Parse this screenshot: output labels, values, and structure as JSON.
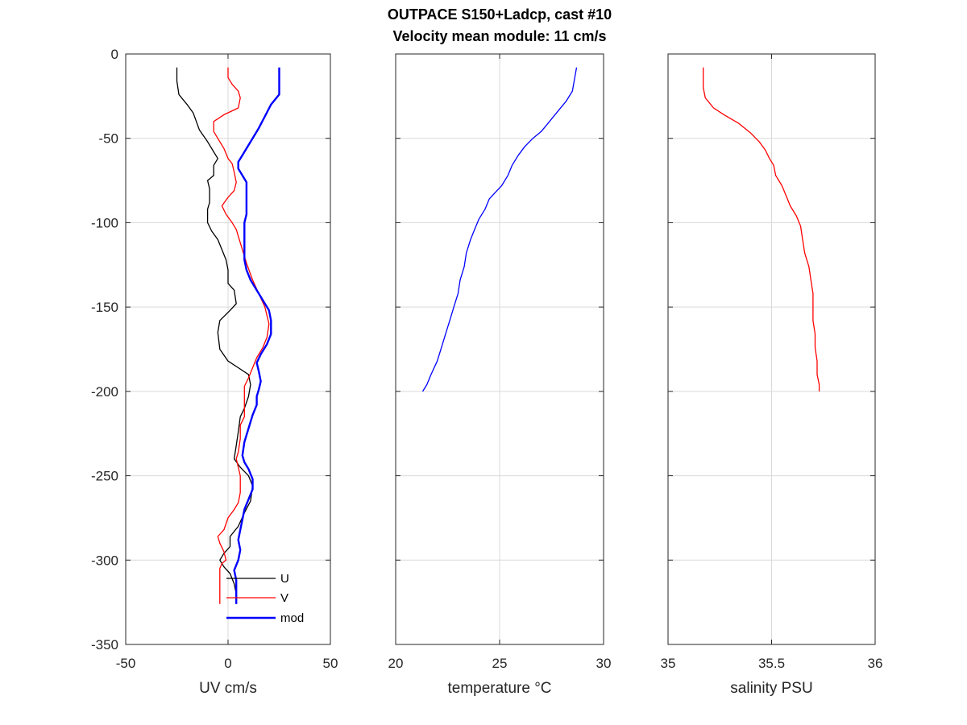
{
  "figure": {
    "title_line1": "OUTPACE S150+Ladcp, cast #10",
    "title_line2": "Velocity mean module:  11 cm/s"
  },
  "chart_data": [
    {
      "type": "line",
      "xlabel": "UV cm/s",
      "ylabel": "",
      "xlim": [
        -50,
        50
      ],
      "ylim": [
        -350,
        0
      ],
      "xticks": [
        "-50",
        "0",
        "50"
      ],
      "yticks": [
        "0",
        "-50",
        "-100",
        "-150",
        "-200",
        "-250",
        "-300",
        "-350"
      ],
      "grid": true,
      "legend": "inside-bottom",
      "series": [
        {
          "name": "U",
          "color": "#000000",
          "points": [
            [
              -25,
              -8
            ],
            [
              -25,
              -16
            ],
            [
              -24,
              -24
            ],
            [
              -20,
              -30
            ],
            [
              -17,
              -35
            ],
            [
              -14,
              -45
            ],
            [
              -10,
              -52
            ],
            [
              -7,
              -58
            ],
            [
              -5,
              -62
            ],
            [
              -7,
              -66
            ],
            [
              -7,
              -72
            ],
            [
              -10,
              -75
            ],
            [
              -9,
              -80
            ],
            [
              -9,
              -88
            ],
            [
              -10,
              -92
            ],
            [
              -10,
              -100
            ],
            [
              -8,
              -105
            ],
            [
              -5,
              -110
            ],
            [
              -3,
              -116
            ],
            [
              -1,
              -122
            ],
            [
              0,
              -128
            ],
            [
              0,
              -136
            ],
            [
              3,
              -140
            ],
            [
              4,
              -148
            ],
            [
              1,
              -152
            ],
            [
              -4,
              -158
            ],
            [
              -5,
              -165
            ],
            [
              -4,
              -175
            ],
            [
              0,
              -182
            ],
            [
              5,
              -186
            ],
            [
              10,
              -190
            ],
            [
              11,
              -196
            ],
            [
              10,
              -203
            ],
            [
              8,
              -210
            ],
            [
              6,
              -215
            ],
            [
              5,
              -224
            ],
            [
              4,
              -232
            ],
            [
              3,
              -240
            ],
            [
              6,
              -245
            ],
            [
              10,
              -250
            ],
            [
              12,
              -256
            ],
            [
              11,
              -265
            ],
            [
              8,
              -272
            ],
            [
              5,
              -280
            ],
            [
              1,
              -286
            ],
            [
              1,
              -292
            ],
            [
              -2,
              -296
            ],
            [
              -4,
              -300
            ],
            [
              -2,
              -304
            ],
            [
              1,
              -308
            ],
            [
              3,
              -314
            ],
            [
              4,
              -320
            ],
            [
              4,
              -326
            ]
          ]
        },
        {
          "name": "V",
          "color": "#ff0000",
          "points": [
            [
              0,
              -8
            ],
            [
              0,
              -14
            ],
            [
              2,
              -18
            ],
            [
              5,
              -22
            ],
            [
              6,
              -26
            ],
            [
              5,
              -32
            ],
            [
              -2,
              -36
            ],
            [
              -7,
              -40
            ],
            [
              -7,
              -46
            ],
            [
              -4,
              -52
            ],
            [
              -2,
              -56
            ],
            [
              0,
              -62
            ],
            [
              2,
              -65
            ],
            [
              3,
              -70
            ],
            [
              4,
              -76
            ],
            [
              3,
              -81
            ],
            [
              0,
              -85
            ],
            [
              -3,
              -90
            ],
            [
              -1,
              -95
            ],
            [
              2,
              -100
            ],
            [
              4,
              -104
            ],
            [
              5,
              -108
            ],
            [
              7,
              -116
            ],
            [
              9,
              -124
            ],
            [
              12,
              -134
            ],
            [
              15,
              -142
            ],
            [
              18,
              -150
            ],
            [
              20,
              -160
            ],
            [
              19,
              -168
            ],
            [
              17,
              -174
            ],
            [
              14,
              -180
            ],
            [
              12,
              -186
            ],
            [
              10,
              -192
            ],
            [
              8,
              -197
            ],
            [
              8,
              -205
            ],
            [
              8,
              -215
            ],
            [
              6,
              -220
            ],
            [
              6,
              -228
            ],
            [
              5,
              -236
            ],
            [
              4,
              -240
            ],
            [
              5,
              -245
            ],
            [
              6,
              -250
            ],
            [
              6,
              -260
            ],
            [
              5,
              -266
            ],
            [
              3,
              -270
            ],
            [
              0,
              -275
            ],
            [
              -2,
              -282
            ],
            [
              -5,
              -286
            ],
            [
              -4,
              -290
            ],
            [
              -2,
              -295
            ],
            [
              -1,
              -300
            ],
            [
              -3,
              -302
            ],
            [
              -4,
              -305
            ],
            [
              -4,
              -315
            ],
            [
              -4,
              -326
            ]
          ]
        },
        {
          "name": "mod",
          "color": "#0000ff",
          "points": [
            [
              25,
              -8
            ],
            [
              25,
              -16
            ],
            [
              25,
              -24
            ],
            [
              21,
              -30
            ],
            [
              18,
              -37
            ],
            [
              15,
              -44
            ],
            [
              12,
              -50
            ],
            [
              9,
              -56
            ],
            [
              7,
              -60
            ],
            [
              5,
              -64
            ],
            [
              5,
              -68
            ],
            [
              7,
              -72
            ],
            [
              9,
              -76
            ],
            [
              9,
              -82
            ],
            [
              9,
              -88
            ],
            [
              9,
              -95
            ],
            [
              8,
              -100
            ],
            [
              8,
              -108
            ],
            [
              8,
              -116
            ],
            [
              8,
              -122
            ],
            [
              9,
              -128
            ],
            [
              11,
              -134
            ],
            [
              14,
              -140
            ],
            [
              17,
              -146
            ],
            [
              20,
              -152
            ],
            [
              21,
              -158
            ],
            [
              21,
              -166
            ],
            [
              19,
              -172
            ],
            [
              16,
              -178
            ],
            [
              14,
              -183
            ],
            [
              15,
              -188
            ],
            [
              16,
              -194
            ],
            [
              15,
              -199
            ],
            [
              14,
              -203
            ],
            [
              14,
              -208
            ],
            [
              12,
              -214
            ],
            [
              10,
              -222
            ],
            [
              8,
              -230
            ],
            [
              7,
              -238
            ],
            [
              8,
              -242
            ],
            [
              10,
              -246
            ],
            [
              12,
              -252
            ],
            [
              12,
              -258
            ],
            [
              10,
              -264
            ],
            [
              8,
              -270
            ],
            [
              7,
              -276
            ],
            [
              6,
              -282
            ],
            [
              5,
              -288
            ],
            [
              6,
              -294
            ],
            [
              5,
              -300
            ],
            [
              3,
              -306
            ],
            [
              4,
              -312
            ],
            [
              4,
              -320
            ],
            [
              4,
              -326
            ]
          ]
        }
      ]
    },
    {
      "type": "line",
      "xlabel": "temperature °C",
      "ylabel": "",
      "xlim": [
        20,
        30
      ],
      "ylim": [
        -350,
        0
      ],
      "xticks": [
        "20",
        "25",
        "30"
      ],
      "grid": true,
      "series": [
        {
          "color": "#0000ff",
          "points": [
            [
              28.7,
              -8
            ],
            [
              28.6,
              -15
            ],
            [
              28.5,
              -22
            ],
            [
              28.2,
              -28
            ],
            [
              27.8,
              -34
            ],
            [
              27.4,
              -40
            ],
            [
              27.0,
              -46
            ],
            [
              26.6,
              -50
            ],
            [
              26.2,
              -55
            ],
            [
              25.9,
              -60
            ],
            [
              25.6,
              -66
            ],
            [
              25.4,
              -72
            ],
            [
              25.1,
              -78
            ],
            [
              24.8,
              -82
            ],
            [
              24.5,
              -86
            ],
            [
              24.3,
              -92
            ],
            [
              24.0,
              -98
            ],
            [
              23.8,
              -104
            ],
            [
              23.6,
              -110
            ],
            [
              23.4,
              -118
            ],
            [
              23.3,
              -126
            ],
            [
              23.1,
              -134
            ],
            [
              23.0,
              -142
            ],
            [
              22.8,
              -150
            ],
            [
              22.6,
              -158
            ],
            [
              22.4,
              -166
            ],
            [
              22.2,
              -174
            ],
            [
              22.0,
              -182
            ],
            [
              21.7,
              -190
            ],
            [
              21.5,
              -196
            ],
            [
              21.3,
              -200
            ]
          ]
        }
      ]
    },
    {
      "type": "line",
      "xlabel": "salinity PSU",
      "ylabel": "",
      "xlim": [
        35,
        36
      ],
      "ylim": [
        -350,
        0
      ],
      "xticks": [
        "35",
        "35.5",
        "36"
      ],
      "grid": true,
      "series": [
        {
          "color": "#ff0000",
          "points": [
            [
              35.17,
              -8
            ],
            [
              35.17,
              -14
            ],
            [
              35.17,
              -20
            ],
            [
              35.18,
              -26
            ],
            [
              35.22,
              -32
            ],
            [
              35.27,
              -36
            ],
            [
              35.34,
              -41
            ],
            [
              35.4,
              -47
            ],
            [
              35.44,
              -52
            ],
            [
              35.47,
              -57
            ],
            [
              35.49,
              -62
            ],
            [
              35.51,
              -66
            ],
            [
              35.52,
              -72
            ],
            [
              35.55,
              -78
            ],
            [
              35.57,
              -84
            ],
            [
              35.59,
              -90
            ],
            [
              35.62,
              -96
            ],
            [
              35.64,
              -102
            ],
            [
              35.65,
              -110
            ],
            [
              35.66,
              -118
            ],
            [
              35.68,
              -126
            ],
            [
              35.69,
              -134
            ],
            [
              35.7,
              -142
            ],
            [
              35.7,
              -150
            ],
            [
              35.7,
              -158
            ],
            [
              35.71,
              -166
            ],
            [
              35.71,
              -174
            ],
            [
              35.72,
              -182
            ],
            [
              35.72,
              -190
            ],
            [
              35.73,
              -196
            ],
            [
              35.73,
              -200
            ]
          ]
        }
      ]
    }
  ]
}
